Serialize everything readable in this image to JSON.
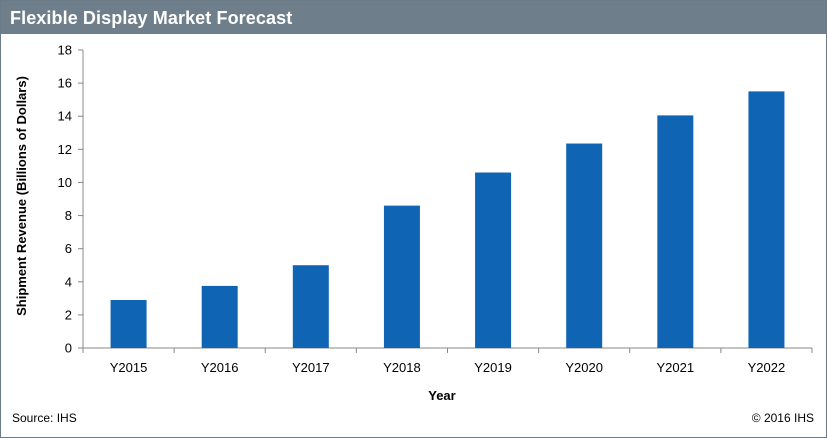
{
  "title": "Flexible Display Market Forecast",
  "footer": {
    "source": "Source: IHS",
    "copyright": "© 2016 IHS"
  },
  "colors": {
    "bar": "#0f65b4",
    "header": "#6e7f8b"
  },
  "chart_data": {
    "type": "bar",
    "title": "Flexible Display Market Forecast",
    "xlabel": "Year",
    "ylabel": "Shipment Revenue (Billions of Dollars)",
    "categories": [
      "Y2015",
      "Y2016",
      "Y2017",
      "Y2018",
      "Y2019",
      "Y2020",
      "Y2021",
      "Y2022"
    ],
    "values": [
      2.9,
      3.75,
      5.0,
      8.6,
      10.6,
      12.35,
      14.05,
      15.5
    ],
    "ylim": [
      0,
      18
    ],
    "yticks": [
      "0",
      "2",
      "4",
      "6",
      "8",
      "10",
      "12",
      "14",
      "16",
      "18"
    ],
    "grid": false,
    "legend": "none"
  }
}
